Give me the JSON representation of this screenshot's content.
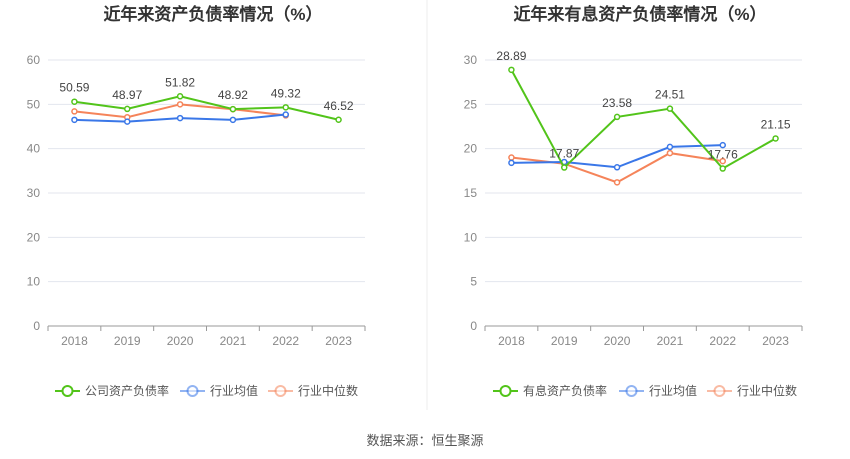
{
  "chart_data": [
    {
      "type": "line",
      "title": "近年来资产负债率情况（%）",
      "categories": [
        "2018",
        "2019",
        "2020",
        "2021",
        "2022",
        "2023"
      ],
      "ylim": [
        0,
        60
      ],
      "yticks": [
        0,
        10,
        20,
        30,
        40,
        50,
        60
      ],
      "grid": true,
      "legend_position": "bottom",
      "series": [
        {
          "name": "公司资产负债率",
          "color": "#52c41a",
          "values": [
            50.59,
            48.97,
            51.82,
            48.92,
            49.32,
            46.52
          ],
          "labels": true
        },
        {
          "name": "行业均值",
          "color": "#3a77e8",
          "values": [
            46.5,
            46.1,
            46.9,
            46.5,
            47.7,
            null
          ]
        },
        {
          "name": "行业中位数",
          "color": "#f5845a",
          "values": [
            48.4,
            47.1,
            50.0,
            48.9,
            47.5,
            null
          ]
        }
      ]
    },
    {
      "type": "line",
      "title": "近年来有息资产负债率情况（%）",
      "categories": [
        "2018",
        "2019",
        "2020",
        "2021",
        "2022",
        "2023"
      ],
      "ylim": [
        0,
        30
      ],
      "yticks": [
        0,
        5,
        10,
        15,
        20,
        25,
        30
      ],
      "grid": true,
      "legend_position": "bottom",
      "series": [
        {
          "name": "有息资产负债率",
          "color": "#52c41a",
          "values": [
            28.89,
            17.87,
            23.58,
            24.51,
            17.76,
            21.15
          ],
          "labels": true
        },
        {
          "name": "行业均值",
          "color": "#3a77e8",
          "values": [
            18.4,
            18.5,
            17.9,
            20.2,
            20.4,
            null
          ]
        },
        {
          "name": "行业中位数",
          "color": "#f5845a",
          "values": [
            19.0,
            18.3,
            16.2,
            19.5,
            18.6,
            null
          ]
        }
      ]
    }
  ],
  "source": "数据来源：恒生聚源"
}
